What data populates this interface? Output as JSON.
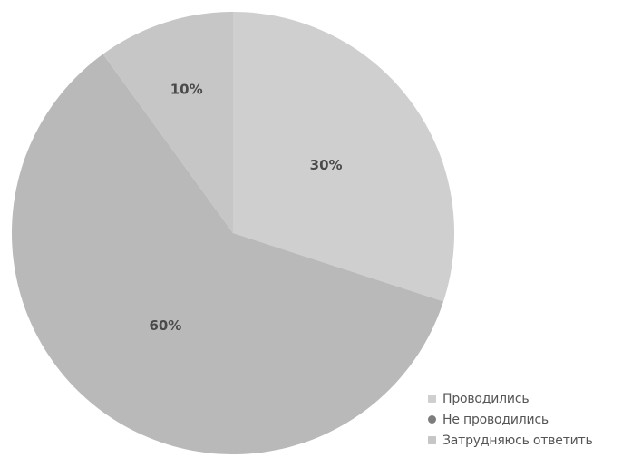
{
  "chart_data": {
    "type": "pie",
    "title": "",
    "slices": [
      {
        "label": "Проводились",
        "value": 30,
        "display": "30%",
        "color": "#cfcfcf"
      },
      {
        "label": "Не проводились",
        "value": 60,
        "display": "60%",
        "color": "#b9b9b9"
      },
      {
        "label": "Затрудняюсь ответить",
        "value": 10,
        "display": "10%",
        "color": "#c6c6c6"
      }
    ],
    "legend": {
      "placement": "bottom-right",
      "items": [
        {
          "label": "Проводились",
          "color": "#cfcfcf",
          "marker": "square"
        },
        {
          "label": "Не проводились",
          "color": "#7d7d7d",
          "marker": "circle"
        },
        {
          "label": "Затрудняюсь ответить",
          "color": "#c6c6c6",
          "marker": "square"
        }
      ]
    },
    "start_angle_deg": 0,
    "direction": "clockwise"
  }
}
